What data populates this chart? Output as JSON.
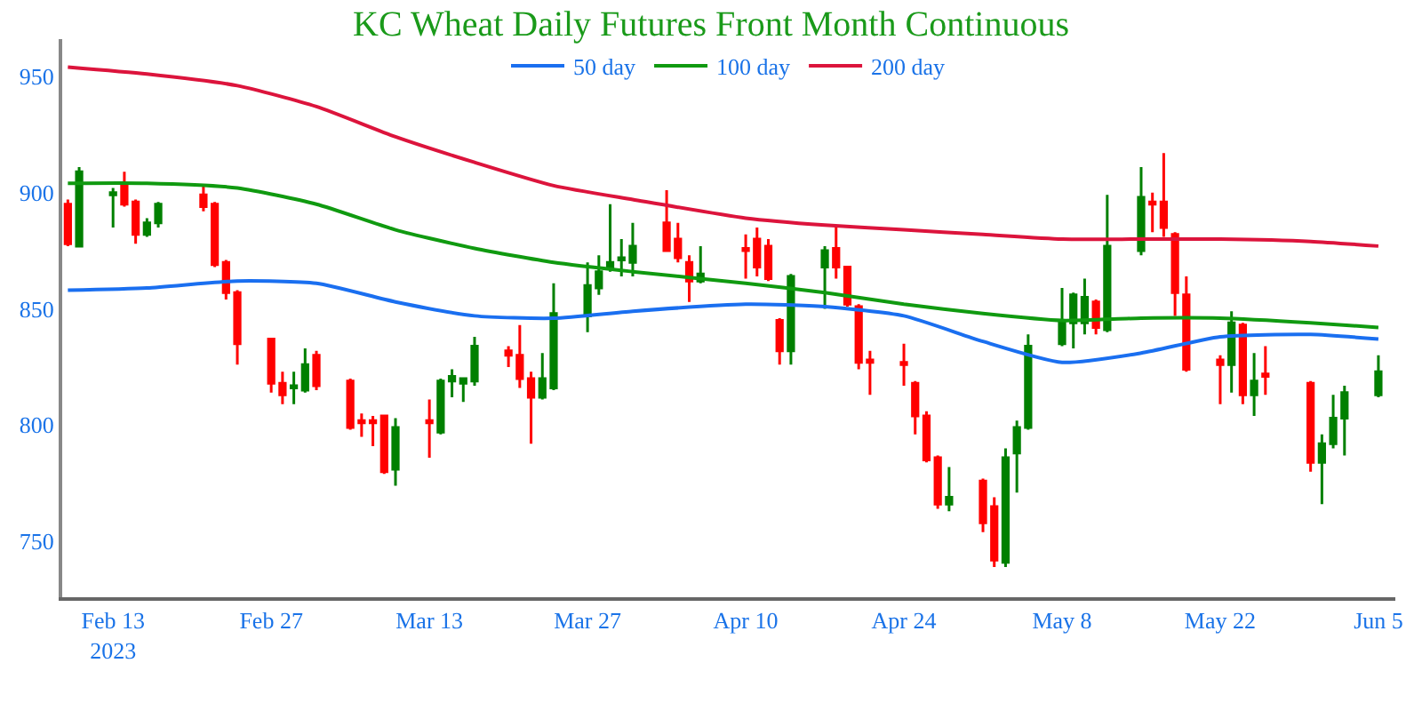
{
  "chart_data": {
    "type": "candlestick",
    "title": "KC Wheat Daily Futures Front Month Continuous",
    "x": [
      "2023-02-09",
      "2023-02-10",
      "2023-02-13",
      "2023-02-14",
      "2023-02-15",
      "2023-02-16",
      "2023-02-17",
      "2023-02-21",
      "2023-02-22",
      "2023-02-23",
      "2023-02-24",
      "2023-02-27",
      "2023-02-28",
      "2023-03-01",
      "2023-03-02",
      "2023-03-03",
      "2023-03-06",
      "2023-03-07",
      "2023-03-08",
      "2023-03-09",
      "2023-03-10",
      "2023-03-13",
      "2023-03-14",
      "2023-03-15",
      "2023-03-16",
      "2023-03-17",
      "2023-03-20",
      "2023-03-21",
      "2023-03-22",
      "2023-03-23",
      "2023-03-24",
      "2023-03-27",
      "2023-03-28",
      "2023-03-29",
      "2023-03-30",
      "2023-03-31",
      "2023-04-03",
      "2023-04-04",
      "2023-04-05",
      "2023-04-06",
      "2023-04-10",
      "2023-04-11",
      "2023-04-12",
      "2023-04-13",
      "2023-04-14",
      "2023-04-17",
      "2023-04-18",
      "2023-04-19",
      "2023-04-20",
      "2023-04-21",
      "2023-04-24",
      "2023-04-25",
      "2023-04-26",
      "2023-04-27",
      "2023-04-28",
      "2023-05-01",
      "2023-05-02",
      "2023-05-03",
      "2023-05-04",
      "2023-05-05",
      "2023-05-08",
      "2023-05-09",
      "2023-05-10",
      "2023-05-11",
      "2023-05-12",
      "2023-05-15",
      "2023-05-16",
      "2023-05-17",
      "2023-05-18",
      "2023-05-19",
      "2023-05-22",
      "2023-05-23",
      "2023-05-24",
      "2023-05-25",
      "2023-05-26",
      "2023-05-30",
      "2023-05-31",
      "2023-06-01",
      "2023-06-02",
      "2023-06-05"
    ],
    "ohlc": [
      [
        895,
        897,
        877,
        878
      ],
      [
        877,
        911,
        877,
        909
      ],
      [
        899,
        902,
        885,
        900
      ],
      [
        903,
        909,
        894,
        895
      ],
      [
        896,
        897,
        878,
        882
      ],
      [
        882,
        889,
        881,
        887
      ],
      [
        887,
        896,
        885,
        895
      ],
      [
        899,
        903,
        892,
        894
      ],
      [
        895,
        896,
        868,
        869
      ],
      [
        870,
        871,
        854,
        857
      ],
      [
        857,
        858,
        826,
        835
      ],
      [
        837,
        837,
        814,
        818
      ],
      [
        818,
        823,
        809,
        813
      ],
      [
        816,
        823,
        809,
        817
      ],
      [
        815,
        833,
        814,
        826
      ],
      [
        830,
        832,
        815,
        817
      ],
      [
        819,
        820,
        798,
        799
      ],
      [
        802,
        805,
        795,
        801
      ],
      [
        802,
        804,
        791,
        801
      ],
      [
        804,
        804,
        779,
        780
      ],
      [
        781,
        803,
        774,
        799
      ],
      [
        802,
        811,
        786,
        801
      ],
      [
        797,
        820,
        796,
        819
      ],
      [
        819,
        824,
        812,
        821
      ],
      [
        818,
        820,
        810,
        820
      ],
      [
        819,
        838,
        817,
        834
      ],
      [
        832,
        834,
        825,
        830
      ],
      [
        830,
        843,
        816,
        820
      ],
      [
        820,
        823,
        792,
        812
      ],
      [
        812,
        831,
        811,
        820
      ],
      [
        816,
        861,
        815,
        848
      ],
      [
        847,
        870,
        840,
        860
      ],
      [
        859,
        873,
        856,
        866
      ],
      [
        868,
        895,
        866,
        870
      ],
      [
        871,
        880,
        864,
        872
      ],
      [
        870,
        887,
        864,
        877
      ],
      [
        887,
        901,
        875,
        875
      ],
      [
        880,
        887,
        870,
        872
      ],
      [
        870,
        873,
        853,
        862
      ],
      [
        862,
        877,
        861,
        865
      ],
      [
        876,
        882,
        863,
        875
      ],
      [
        880,
        885,
        864,
        868
      ],
      [
        877,
        880,
        862,
        863
      ],
      [
        845,
        846,
        826,
        832
      ],
      [
        832,
        865,
        826,
        864
      ],
      [
        868,
        877,
        850,
        875
      ],
      [
        876,
        885,
        863,
        868
      ],
      [
        868,
        868,
        851,
        852
      ],
      [
        851,
        852,
        824,
        827
      ],
      [
        828,
        832,
        813,
        827
      ],
      [
        827,
        835,
        817,
        826
      ],
      [
        818,
        819,
        796,
        804
      ],
      [
        804,
        806,
        784,
        785
      ],
      [
        786,
        787,
        764,
        766
      ],
      [
        766,
        782,
        763,
        769
      ],
      [
        776,
        777,
        754,
        758
      ],
      [
        765,
        769,
        739,
        742
      ],
      [
        741,
        790,
        739,
        786
      ],
      [
        788,
        802,
        771,
        799
      ],
      [
        799,
        839,
        798,
        834
      ],
      [
        835,
        859,
        834,
        844
      ],
      [
        844,
        857,
        833,
        856
      ],
      [
        844,
        863,
        839,
        855
      ],
      [
        853,
        854,
        839,
        842
      ],
      [
        841,
        899,
        840,
        877
      ],
      [
        875,
        911,
        873,
        898
      ],
      [
        896,
        900,
        883,
        895
      ],
      [
        896,
        917,
        881,
        885
      ],
      [
        882,
        883,
        847,
        857
      ],
      [
        856,
        864,
        823,
        824
      ],
      [
        828,
        830,
        809,
        826
      ],
      [
        826,
        849,
        814,
        844
      ],
      [
        843,
        844,
        809,
        813
      ],
      [
        813,
        831,
        804,
        819
      ],
      [
        822,
        834,
        813,
        821
      ],
      [
        818,
        819,
        780,
        784
      ],
      [
        784,
        796,
        766,
        792
      ],
      [
        792,
        813,
        790,
        803
      ],
      [
        803,
        817,
        787,
        814
      ],
      [
        813,
        830,
        812,
        823
      ]
    ],
    "colors": [
      "#ff0000",
      "#008000",
      "#008000",
      "#ff0000",
      "#ff0000",
      "#008000",
      "#008000",
      "#ff0000",
      "#ff0000",
      "#ff0000",
      "#ff0000",
      "#ff0000",
      "#ff0000",
      "#008000",
      "#008000",
      "#ff0000",
      "#ff0000",
      "#ff0000",
      "#ff0000",
      "#ff0000",
      "#008000",
      "#ff0000",
      "#008000",
      "#008000",
      "#008000",
      "#008000",
      "#ff0000",
      "#ff0000",
      "#ff0000",
      "#008000",
      "#008000",
      "#008000",
      "#008000",
      "#008000",
      "#008000",
      "#008000",
      "#ff0000",
      "#ff0000",
      "#ff0000",
      "#008000",
      "#ff0000",
      "#ff0000",
      "#ff0000",
      "#ff0000",
      "#008000",
      "#008000",
      "#ff0000",
      "#ff0000",
      "#ff0000",
      "#ff0000",
      "#ff0000",
      "#ff0000",
      "#ff0000",
      "#ff0000",
      "#008000",
      "#ff0000",
      "#ff0000",
      "#008000",
      "#008000",
      "#008000",
      "#008000",
      "#008000",
      "#008000",
      "#ff0000",
      "#008000",
      "#008000",
      "#ff0000",
      "#ff0000",
      "#ff0000",
      "#ff0000",
      "#ff0000",
      "#008000",
      "#ff0000",
      "#008000",
      "#ff0000",
      "#ff0000",
      "#008000",
      "#008000",
      "#008000",
      "#008000"
    ],
    "series": [
      {
        "type": "line",
        "name": "50 day",
        "color": "#1a6ff0",
        "x": [
          "2023-02-09",
          "2023-02-16",
          "2023-02-24",
          "2023-03-03",
          "2023-03-10",
          "2023-03-17",
          "2023-03-24",
          "2023-03-31",
          "2023-04-10",
          "2023-04-17",
          "2023-04-24",
          "2023-05-01",
          "2023-05-08",
          "2023-05-15",
          "2023-05-22",
          "2023-05-30",
          "2023-06-05"
        ],
        "values": [
          858,
          859,
          862,
          861,
          853,
          847,
          846,
          849,
          852,
          851,
          847,
          836,
          827,
          831,
          838,
          839,
          837
        ]
      },
      {
        "type": "line",
        "name": "100 day",
        "color": "#109a10",
        "x": [
          "2023-02-09",
          "2023-02-16",
          "2023-02-24",
          "2023-03-03",
          "2023-03-10",
          "2023-03-17",
          "2023-03-24",
          "2023-03-31",
          "2023-04-10",
          "2023-04-17",
          "2023-04-24",
          "2023-05-01",
          "2023-05-08",
          "2023-05-15",
          "2023-05-22",
          "2023-05-30",
          "2023-06-05"
        ],
        "values": [
          904,
          904,
          902,
          895,
          884,
          876,
          870,
          866,
          861,
          857,
          852,
          848,
          845,
          846,
          846,
          844,
          842
        ]
      },
      {
        "type": "line",
        "name": "200 day",
        "color": "#dc143c",
        "x": [
          "2023-02-09",
          "2023-02-16",
          "2023-02-24",
          "2023-03-03",
          "2023-03-10",
          "2023-03-17",
          "2023-03-24",
          "2023-03-31",
          "2023-04-10",
          "2023-04-17",
          "2023-04-24",
          "2023-05-01",
          "2023-05-08",
          "2023-05-15",
          "2023-05-22",
          "2023-05-30",
          "2023-06-05"
        ],
        "values": [
          954,
          951,
          946,
          937,
          924,
          913,
          903,
          897,
          889,
          886,
          884,
          882,
          880,
          880,
          880,
          879,
          877
        ]
      }
    ],
    "xlim": [
      "2023-02-08T12:00",
      "2023-06-06T12:00"
    ],
    "xticks": [
      {
        "value": "2023-02-13",
        "label": "Feb 13\n2023"
      },
      {
        "value": "2023-02-27",
        "label": "Feb 27"
      },
      {
        "value": "2023-03-13",
        "label": "Mar 13"
      },
      {
        "value": "2023-03-27",
        "label": "Mar 27"
      },
      {
        "value": "2023-04-10",
        "label": "Apr 10"
      },
      {
        "value": "2023-04-24",
        "label": "Apr 24"
      },
      {
        "value": "2023-05-08",
        "label": "May 8"
      },
      {
        "value": "2023-05-22",
        "label": "May 22"
      },
      {
        "value": "2023-06-05",
        "label": "Jun 5"
      }
    ],
    "ylim": [
      726,
      966
    ],
    "yticks": [
      750,
      800,
      850,
      900,
      950
    ],
    "grid": false,
    "legend": "top",
    "line_style": "solid",
    "marker": "none"
  }
}
